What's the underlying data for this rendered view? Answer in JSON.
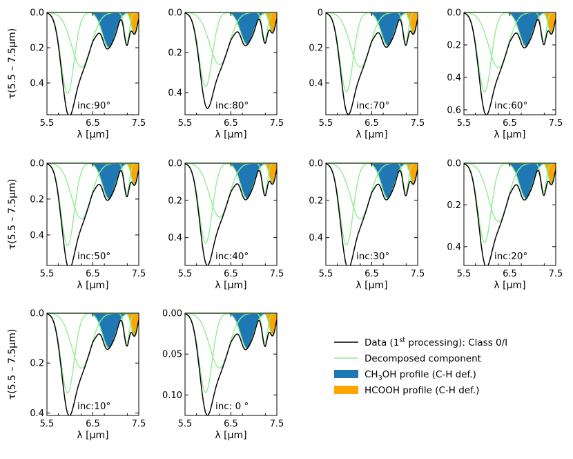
{
  "figure": {
    "colors": {
      "data": "#000000",
      "component": "#90ee90",
      "ch3oh": "#1f77b4",
      "hcooh": "#ffa500"
    }
  },
  "chart_data": [
    {
      "type": "line",
      "label": "inc:90°",
      "xlim": [
        5.5,
        7.5
      ],
      "ylim": [
        0.58,
        0.0
      ],
      "xticks": [
        "5.5",
        "6.5",
        "7.5"
      ],
      "yticks": [
        0.0,
        0.2,
        0.4
      ],
      "ytick_labels": [
        "0.0",
        "0.2",
        "0.4"
      ],
      "xlabel": "λ [μm]",
      "ylabel": "τ(5.5 – 7.5μm)",
      "components": [
        {
          "center": 5.95,
          "depth": 0.46,
          "width": 0.2
        },
        {
          "center": 6.25,
          "depth": 0.31,
          "width": 0.3
        },
        {
          "center": 6.85,
          "depth": 0.2,
          "width": 0.2
        },
        {
          "center": 7.24,
          "depth": 0.17,
          "width": 0.08
        },
        {
          "center": 7.4,
          "depth": 0.12,
          "width": 0.09
        }
      ]
    },
    {
      "type": "line",
      "label": "inc:80°",
      "xlim": [
        5.5,
        7.5
      ],
      "ylim": [
        0.51,
        0.0
      ],
      "xticks": [
        "5.5",
        "6.5",
        "7.5"
      ],
      "yticks": [
        0.0,
        0.2,
        0.4
      ],
      "ytick_labels": [
        "0.0",
        "0.2",
        "0.4"
      ],
      "xlabel": "λ [μm]",
      "ylabel": "",
      "components": [
        {
          "center": 5.95,
          "depth": 0.37,
          "width": 0.2
        },
        {
          "center": 6.25,
          "depth": 0.26,
          "width": 0.3
        },
        {
          "center": 6.85,
          "depth": 0.16,
          "width": 0.2
        },
        {
          "center": 7.24,
          "depth": 0.14,
          "width": 0.08
        },
        {
          "center": 7.4,
          "depth": 0.1,
          "width": 0.09
        }
      ]
    },
    {
      "type": "line",
      "label": "inc:70°",
      "xlim": [
        5.5,
        7.5
      ],
      "ylim": [
        0.58,
        0.0
      ],
      "xticks": [
        "5.5",
        "6.5",
        "7.5"
      ],
      "yticks": [
        0.0,
        0.2,
        0.4
      ],
      "ytick_labels": [
        "0",
        "0.2",
        "0.4"
      ],
      "xlabel": "λ [μm]",
      "ylabel": "",
      "components": [
        {
          "center": 5.95,
          "depth": 0.45,
          "width": 0.2
        },
        {
          "center": 6.25,
          "depth": 0.31,
          "width": 0.3
        },
        {
          "center": 6.85,
          "depth": 0.19,
          "width": 0.2
        },
        {
          "center": 7.24,
          "depth": 0.17,
          "width": 0.08
        },
        {
          "center": 7.4,
          "depth": 0.12,
          "width": 0.09
        }
      ]
    },
    {
      "type": "line",
      "label": "inc:60°",
      "xlim": [
        5.5,
        7.5
      ],
      "ylim": [
        0.63,
        0.0
      ],
      "xticks": [
        "5.5",
        "6.5",
        "7.5"
      ],
      "yticks": [
        0.0,
        0.2,
        0.4,
        0.6
      ],
      "ytick_labels": [
        "0.0",
        "0.2",
        "0.4",
        "0.6"
      ],
      "xlabel": "λ [μm]",
      "ylabel": "",
      "components": [
        {
          "center": 5.95,
          "depth": 0.49,
          "width": 0.2
        },
        {
          "center": 6.25,
          "depth": 0.34,
          "width": 0.3
        },
        {
          "center": 6.85,
          "depth": 0.21,
          "width": 0.2
        },
        {
          "center": 7.24,
          "depth": 0.18,
          "width": 0.08
        },
        {
          "center": 7.4,
          "depth": 0.13,
          "width": 0.09
        }
      ]
    },
    {
      "type": "line",
      "label": "inc:50°",
      "xlim": [
        5.5,
        7.5
      ],
      "ylim": [
        0.57,
        0.0
      ],
      "xticks": [
        "5.5",
        "6.5",
        "7.5"
      ],
      "yticks": [
        0.0,
        0.2,
        0.4
      ],
      "ytick_labels": [
        "0.0",
        "0.2",
        "0.4"
      ],
      "xlabel": "λ [μm]",
      "ylabel": "τ(5.5 – 7.5μm)",
      "components": [
        {
          "center": 5.95,
          "depth": 0.46,
          "width": 0.2
        },
        {
          "center": 6.25,
          "depth": 0.31,
          "width": 0.3
        },
        {
          "center": 6.85,
          "depth": 0.2,
          "width": 0.2
        },
        {
          "center": 7.24,
          "depth": 0.17,
          "width": 0.08
        },
        {
          "center": 7.4,
          "depth": 0.12,
          "width": 0.09
        }
      ]
    },
    {
      "type": "line",
      "label": "inc:40°",
      "xlim": [
        5.5,
        7.5
      ],
      "ylim": [
        0.55,
        0.0
      ],
      "xticks": [
        "5.5",
        "6.5",
        "7.5"
      ],
      "yticks": [
        0.0,
        0.2,
        0.4
      ],
      "ytick_labels": [
        "0.0",
        "0.2",
        "0.4"
      ],
      "xlabel": "λ [μm]",
      "ylabel": "",
      "components": [
        {
          "center": 5.95,
          "depth": 0.43,
          "width": 0.2
        },
        {
          "center": 6.25,
          "depth": 0.29,
          "width": 0.3
        },
        {
          "center": 6.85,
          "depth": 0.19,
          "width": 0.2
        },
        {
          "center": 7.24,
          "depth": 0.16,
          "width": 0.08
        },
        {
          "center": 7.4,
          "depth": 0.11,
          "width": 0.09
        }
      ]
    },
    {
      "type": "line",
      "label": "inc:30°",
      "xlim": [
        5.5,
        7.5
      ],
      "ylim": [
        0.55,
        0.0
      ],
      "xticks": [
        "5.5",
        "6.5",
        "7.5"
      ],
      "yticks": [
        0.0,
        0.2,
        0.4
      ],
      "ytick_labels": [
        "0.0",
        "0.2",
        "0.4"
      ],
      "xlabel": "λ [μm]",
      "ylabel": "",
      "components": [
        {
          "center": 5.95,
          "depth": 0.44,
          "width": 0.2
        },
        {
          "center": 6.25,
          "depth": 0.3,
          "width": 0.3
        },
        {
          "center": 6.85,
          "depth": 0.19,
          "width": 0.2
        },
        {
          "center": 7.24,
          "depth": 0.16,
          "width": 0.08
        },
        {
          "center": 7.4,
          "depth": 0.11,
          "width": 0.09
        }
      ]
    },
    {
      "type": "line",
      "label": "inc:20°",
      "xlim": [
        5.5,
        7.5
      ],
      "ylim": [
        0.49,
        0.0
      ],
      "xticks": [
        "5.5",
        "6.5",
        "7.5"
      ],
      "yticks": [
        0.0,
        0.2,
        0.4
      ],
      "ytick_labels": [
        "0.0",
        "0.2",
        "0.4"
      ],
      "xlabel": "λ [μm]",
      "ylabel": "",
      "components": [
        {
          "center": 5.95,
          "depth": 0.38,
          "width": 0.2
        },
        {
          "center": 6.25,
          "depth": 0.28,
          "width": 0.3
        },
        {
          "center": 6.85,
          "depth": 0.17,
          "width": 0.2
        },
        {
          "center": 7.24,
          "depth": 0.14,
          "width": 0.08
        },
        {
          "center": 7.4,
          "depth": 0.1,
          "width": 0.09
        }
      ]
    },
    {
      "type": "line",
      "label": "inc:10°",
      "xlim": [
        5.5,
        7.5
      ],
      "ylim": [
        0.41,
        0.0
      ],
      "xticks": [
        "5.5",
        "6.5",
        "7.5"
      ],
      "yticks": [
        0.0,
        0.2,
        0.4
      ],
      "ytick_labels": [
        "0.0",
        "0.2",
        "0.4"
      ],
      "xlabel": "λ [μm]",
      "ylabel": "τ(5.5 – 7.5μm)",
      "components": [
        {
          "center": 5.95,
          "depth": 0.32,
          "width": 0.2
        },
        {
          "center": 6.25,
          "depth": 0.22,
          "width": 0.3
        },
        {
          "center": 6.85,
          "depth": 0.14,
          "width": 0.2
        },
        {
          "center": 7.24,
          "depth": 0.12,
          "width": 0.08
        },
        {
          "center": 7.4,
          "depth": 0.09,
          "width": 0.09
        }
      ]
    },
    {
      "type": "line",
      "label": "inc: 0 °",
      "xlim": [
        5.5,
        7.5
      ],
      "ylim": [
        0.125,
        0.0
      ],
      "xticks": [
        "5.5",
        "6.5",
        "7.5"
      ],
      "yticks": [
        0.0,
        0.05,
        0.1
      ],
      "ytick_labels": [
        "0.00",
        "0.05",
        "0.10"
      ],
      "xlabel": "λ [μm]",
      "ylabel": "",
      "components": [
        {
          "center": 5.95,
          "depth": 0.097,
          "width": 0.2
        },
        {
          "center": 6.25,
          "depth": 0.067,
          "width": 0.3
        },
        {
          "center": 6.85,
          "depth": 0.043,
          "width": 0.2
        },
        {
          "center": 7.24,
          "depth": 0.037,
          "width": 0.08
        },
        {
          "center": 7.4,
          "depth": 0.027,
          "width": 0.09
        }
      ]
    }
  ],
  "legend": {
    "placement": "lower-right",
    "items": [
      {
        "kind": "line",
        "color_key": "data",
        "text_before": "Data (1",
        "sup": "st",
        "text_after": " processing): Class 0/I"
      },
      {
        "kind": "line",
        "color_key": "component",
        "text_before": "Decomposed component",
        "sup": "",
        "text_after": ""
      },
      {
        "kind": "patch",
        "color_key": "ch3oh",
        "text_before": "CH",
        "sub": "3",
        "text_after": "OH profile (C-H def.)"
      },
      {
        "kind": "patch",
        "color_key": "hcooh",
        "text_before": "HCOOH profile (C-H def.)",
        "sub": "",
        "text_after": ""
      }
    ]
  }
}
